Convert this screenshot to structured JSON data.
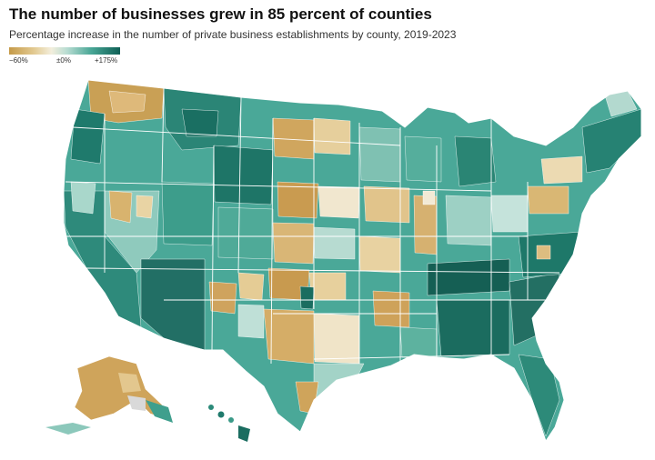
{
  "title": "The number of businesses grew in 85 percent of counties",
  "subtitle": "Percentage increase in the number of private business establishments by county, 2019-2023",
  "legend": {
    "min_label": "−60%",
    "mid_label": "±0%",
    "max_label": "+175%",
    "colors": {
      "decline_strong": "#c59a48",
      "decline_light": "#e2c990",
      "neutral": "#f3eedc",
      "growth_light": "#b8dcd2",
      "growth_mid": "#49a796",
      "growth_strong": "#0e5f55"
    }
  }
}
